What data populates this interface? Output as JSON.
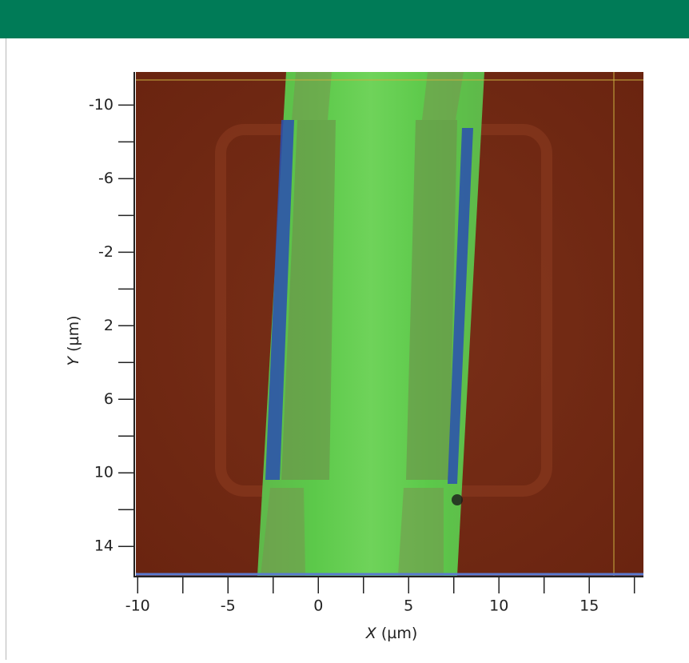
{
  "chart_data": {
    "type": "image",
    "xlabel": {
      "symbol": "X",
      "unit": "(µm)"
    },
    "ylabel": {
      "symbol": "Y",
      "unit": "(µm)"
    },
    "xlim": [
      -10.1,
      18
    ],
    "xticks": [
      -10,
      -5,
      0,
      5,
      10,
      15
    ],
    "xminorticks": [
      -7.5,
      -2.5,
      2.5,
      7.5,
      12.5,
      17.5
    ],
    "ylim": [
      -11.8,
      15.6
    ],
    "yticks": [
      -10,
      -6,
      -2,
      2,
      6,
      10,
      14
    ],
    "yminorticks": [
      -8,
      -4,
      0,
      4,
      8,
      12
    ]
  }
}
